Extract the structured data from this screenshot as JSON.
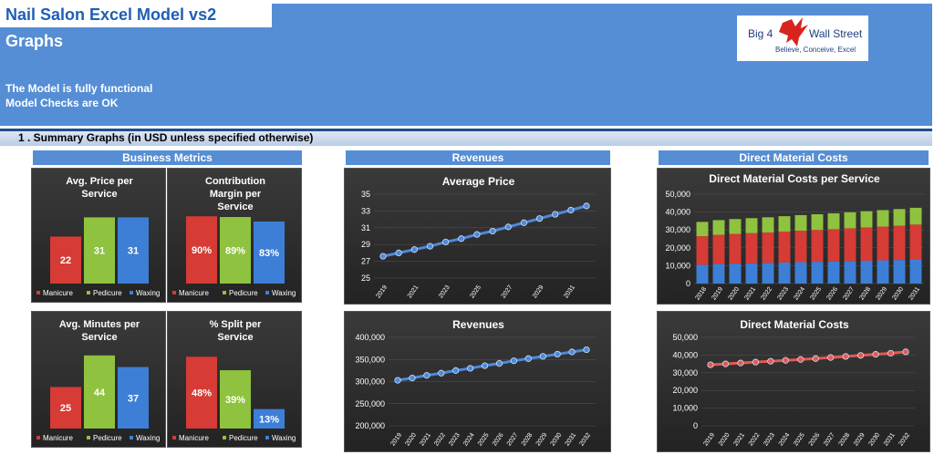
{
  "header": {
    "title": "Nail Salon Excel Model vs2",
    "subtitle": "Graphs",
    "status_lines": [
      "The Model is fully functional",
      "Model Checks are OK"
    ],
    "logo": {
      "name": "Big 4",
      "name2": "Wall Street",
      "tagline": "Believe, Conceive, Excel"
    }
  },
  "section": {
    "title": "1 . Summary Graphs (in USD unless specified otherwise)"
  },
  "groups": {
    "business": "Business Metrics",
    "revenues": "Revenues",
    "dmc": "Direct Material Costs"
  },
  "colors": {
    "manicure": "#d63b35",
    "pedicure": "#8fc23f",
    "waxing": "#3d7fd6",
    "line_blue": "#4f89d9",
    "line_red": "#e25a55"
  },
  "chart_data": [
    {
      "id": "avg-price-per-service",
      "type": "bar",
      "title": "Avg. Price per Service",
      "title_lines": [
        "Avg. Price per",
        "Service"
      ],
      "categories": [
        "Manicure",
        "Pedicure",
        "Waxing"
      ],
      "values": [
        22,
        31,
        31
      ],
      "labels": [
        "22",
        "31",
        "31"
      ],
      "ylim": [
        0,
        35
      ]
    },
    {
      "id": "contribution-margin",
      "type": "bar",
      "title": "Contribution Margin per Service",
      "title_lines": [
        "Contribution",
        "Margin per",
        "Service"
      ],
      "categories": [
        "Manicure",
        "Pedicure",
        "Waxing"
      ],
      "values": [
        90,
        89,
        83
      ],
      "labels": [
        "90%",
        "89%",
        "83%"
      ],
      "ylim": [
        0,
        100
      ]
    },
    {
      "id": "avg-minutes-per-service",
      "type": "bar",
      "title": "Avg. Minutes per Service",
      "title_lines": [
        "Avg. Minutes per",
        "Service"
      ],
      "categories": [
        "Manicure",
        "Pedicure",
        "Waxing"
      ],
      "values": [
        25,
        44,
        37
      ],
      "labels": [
        "25",
        "44",
        "37"
      ],
      "ylim": [
        0,
        45
      ]
    },
    {
      "id": "split-per-service",
      "type": "bar",
      "title": "% Split per Service",
      "title_lines": [
        "% Split per",
        "Service"
      ],
      "categories": [
        "Manicure",
        "Pedicure",
        "Waxing"
      ],
      "values": [
        48,
        39,
        13
      ],
      "labels": [
        "48%",
        "39%",
        "13%"
      ],
      "ylim": [
        0,
        50
      ]
    },
    {
      "id": "average-price",
      "type": "line",
      "title": "Average Price",
      "x": [
        2019,
        2020,
        2021,
        2022,
        2023,
        2024,
        2025,
        2026,
        2027,
        2028,
        2029,
        2030,
        2031,
        2032
      ],
      "x_tick_labels": [
        "2019",
        "2021",
        "2023",
        "2025",
        "2027",
        "2029",
        "2031"
      ],
      "values": [
        27.6,
        28.0,
        28.4,
        28.8,
        29.3,
        29.7,
        30.2,
        30.6,
        31.1,
        31.6,
        32.1,
        32.6,
        33.1,
        33.6
      ],
      "ylim": [
        25,
        35
      ],
      "yticks": [
        25,
        27,
        29,
        31,
        33,
        35
      ],
      "ytick_labels": [
        "25",
        "27",
        "29",
        "31",
        "33",
        "35"
      ]
    },
    {
      "id": "revenues",
      "type": "line",
      "title": "Revenues",
      "x": [
        2019,
        2020,
        2021,
        2022,
        2023,
        2024,
        2025,
        2026,
        2027,
        2028,
        2029,
        2030,
        2031,
        2032
      ],
      "x_tick_labels": [
        "2019",
        "2020",
        "2021",
        "2022",
        "2023",
        "2024",
        "2025",
        "2026",
        "2027",
        "2028",
        "2029",
        "2030",
        "2031",
        "2032"
      ],
      "values": [
        303000,
        308000,
        314000,
        319000,
        325000,
        330000,
        336000,
        341000,
        347000,
        352000,
        357000,
        362000,
        367000,
        372000
      ],
      "ylim": [
        200000,
        400000
      ],
      "yticks": [
        200000,
        250000,
        300000,
        350000,
        400000
      ],
      "ytick_labels": [
        "200,000",
        "250,000",
        "300,000",
        "350,000",
        "400,000"
      ]
    },
    {
      "id": "dmc-per-service",
      "type": "bar",
      "stacked": true,
      "title": "Direct Material Costs per Service",
      "categories": [
        "2018",
        "2019",
        "2020",
        "2021",
        "2022",
        "2023",
        "2024",
        "2025",
        "2026",
        "2027",
        "2028",
        "2029",
        "2030",
        "2031"
      ],
      "series": [
        {
          "values": [
            10500,
            11000,
            11200,
            11400,
            11600,
            11800,
            12000,
            12200,
            12400,
            12600,
            12800,
            13000,
            13200,
            13500
          ]
        },
        {
          "values": [
            16000,
            16300,
            16600,
            16800,
            17000,
            17300,
            17600,
            17800,
            18000,
            18300,
            18600,
            18900,
            19200,
            19500
          ]
        },
        {
          "values": [
            8000,
            8200,
            8300,
            8400,
            8500,
            8600,
            8700,
            8800,
            8900,
            9000,
            9100,
            9200,
            9300,
            9400
          ]
        }
      ],
      "ylim": [
        0,
        50000
      ],
      "yticks": [
        0,
        10000,
        20000,
        30000,
        40000,
        50000
      ],
      "ytick_labels": [
        "0",
        "10,000",
        "20,000",
        "30,000",
        "40,000",
        "50,000"
      ]
    },
    {
      "id": "dmc-total",
      "type": "line",
      "title": "Direct Material Costs",
      "x": [
        2019,
        2020,
        2021,
        2022,
        2023,
        2024,
        2025,
        2026,
        2027,
        2028,
        2029,
        2030,
        2031,
        2032
      ],
      "x_tick_labels": [
        "2019",
        "2020",
        "2021",
        "2022",
        "2023",
        "2024",
        "2025",
        "2026",
        "2027",
        "2028",
        "2029",
        "2030",
        "2031",
        "2032"
      ],
      "values": [
        34500,
        35000,
        35500,
        36000,
        36500,
        37000,
        37500,
        38000,
        38600,
        39200,
        39800,
        40400,
        41000,
        41800
      ],
      "ylim": [
        0,
        50000
      ],
      "yticks": [
        0,
        10000,
        20000,
        30000,
        40000,
        50000
      ],
      "ytick_labels": [
        "0",
        "10,000",
        "20,000",
        "30,000",
        "40,000",
        "50,000"
      ]
    }
  ]
}
